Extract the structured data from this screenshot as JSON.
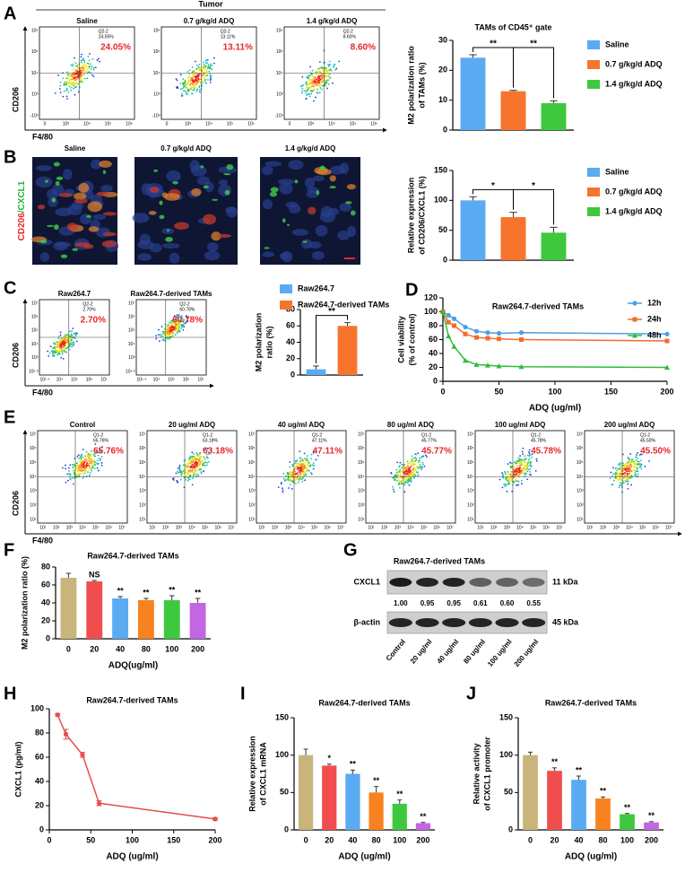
{
  "panel_letters": [
    "A",
    "B",
    "C",
    "D",
    "E",
    "F",
    "G",
    "H",
    "I",
    "J"
  ],
  "flow_axis_labels": {
    "y": "CD206",
    "x": "F4/80"
  },
  "flow_groups": [
    {
      "header": "Tumor",
      "yticks": [
        "10⁶",
        "10⁵",
        "10⁴",
        "10³",
        "-10³"
      ],
      "xticks": [
        "0",
        "10³",
        "10⁴",
        "10⁵",
        "10⁶"
      ],
      "plots": [
        {
          "title": "Saline",
          "gate": "Q2-2",
          "percent": 24.05,
          "percent_label": "24.05%"
        },
        {
          "title": "0.7 g/kg/d ADQ",
          "gate": "Q2-2",
          "percent": 13.11,
          "percent_label": "13.11%"
        },
        {
          "title": "1.4 g/kg/d ADQ",
          "gate": "Q2-2",
          "percent": 8.6,
          "percent_label": "8.60%"
        }
      ]
    },
    {
      "yticks": [
        "10⁷",
        "10⁶",
        "10⁵",
        "10⁴",
        "10³",
        "10¹·²"
      ],
      "xticks": [
        "10¹·⁴",
        "10⁴",
        "10⁵",
        "10⁶",
        "10⁷"
      ],
      "plots": [
        {
          "title": "Raw264.7",
          "gate": "Q2-2",
          "percent": 2.7,
          "percent_label": "2.70%"
        },
        {
          "title": "Raw264.7-derived TAMs",
          "gate": "Q2-2",
          "percent": 60.78,
          "percent_label": "60.78%"
        }
      ]
    },
    {
      "yticks": [
        "10⁷",
        "10⁶",
        "10⁵",
        "10⁴",
        "10³",
        "10²",
        "10¹"
      ],
      "xticks": [
        "10¹",
        "10²",
        "10³",
        "10⁴",
        "10⁵",
        "10⁶",
        "10⁷"
      ],
      "plots": [
        {
          "title": "Control",
          "gate": "Q1-2",
          "percent": 65.76,
          "percent_label": "65.76%"
        },
        {
          "title": "20 ug/ml ADQ",
          "gate": "Q1-2",
          "percent": 63.18,
          "percent_label": "63.18%"
        },
        {
          "title": "40 ug/ml ADQ",
          "gate": "Q1-2",
          "percent": 47.11,
          "percent_label": "47.11%"
        },
        {
          "title": "80 ug/ml ADQ",
          "gate": "Q1-2",
          "percent": 45.77,
          "percent_label": "45.77%"
        },
        {
          "title": "100 ug/ml ADQ",
          "gate": "Q1-2",
          "percent": 45.78,
          "percent_label": "45.78%"
        },
        {
          "title": "200 ug/ml ADQ",
          "gate": "Q1-2",
          "percent": 45.5,
          "percent_label": "45.50%"
        }
      ]
    }
  ],
  "micrographs": {
    "stain_labels": [
      "CD206",
      "/CXCL1"
    ],
    "titles": [
      "Saline",
      "0.7 g/kg/d ADQ",
      "1.4 g/kg/d ADQ"
    ]
  },
  "western_blot": {
    "title": "Raw264.7-derived TAMs",
    "bands": [
      {
        "name": "CXCL1",
        "size": "11 kDa"
      },
      {
        "name": "β-actin",
        "size": "45 kDa"
      }
    ],
    "lanes": [
      "Control",
      "20 ug/ml",
      "40 ug/ml",
      "80 ug/ml",
      "100 ug/ml",
      "200 ug/ml"
    ],
    "quantification": [
      1,
      0.95,
      0.95,
      0.61,
      0.6,
      0.55
    ],
    "quantification_labels": [
      "1.00",
      "0.95",
      "0.95",
      "0.61",
      "0.60",
      "0.55"
    ]
  },
  "chart_data": [
    {
      "type": "bar",
      "title": "TAMs of CD45⁺ gate",
      "ylabel": [
        "M2 polarization ratio",
        "of TAMs (%)"
      ],
      "categories": [
        "Saline",
        "0.7 g/kg/d ADQ",
        "1.4 g/kg/d ADQ"
      ],
      "values": [
        24.2,
        13,
        9
      ],
      "errors": [
        1,
        0.3,
        0.8
      ],
      "colors": [
        "#5aabf2",
        "#f7742d",
        "#3ec83e"
      ],
      "ylim": [
        0,
        30
      ],
      "yticks": [
        0,
        10,
        20,
        30
      ],
      "legend": true,
      "significance": [
        "**",
        "**"
      ]
    },
    {
      "type": "bar",
      "ylabel": [
        "Relative expression",
        "of CD206/CXCL1 (%)"
      ],
      "categories": [
        "Saline",
        "0.7 g/kg/d ADQ",
        "1.4 g/kg/d ADQ"
      ],
      "values": [
        100,
        72,
        46
      ],
      "errors": [
        6,
        8,
        9
      ],
      "colors": [
        "#5aabf2",
        "#f7742d",
        "#3ec83e"
      ],
      "ylim": [
        0,
        150
      ],
      "yticks": [
        0,
        50,
        100,
        150
      ],
      "legend": true,
      "significance": [
        "*",
        "*"
      ]
    },
    {
      "type": "bar",
      "ylabel": [
        "M2 polarization",
        "ratio (%)"
      ],
      "categories": [
        "Raw264.7",
        "Raw264.7-derived TAMs"
      ],
      "values": [
        7,
        60
      ],
      "errors": [
        4,
        4
      ],
      "colors": [
        "#5aabf2",
        "#f7742d"
      ],
      "ylim": [
        0,
        80
      ],
      "yticks": [
        0,
        20,
        40,
        60,
        80
      ],
      "legend": true,
      "significance": [
        "**"
      ]
    },
    {
      "type": "line",
      "title": "Raw264.7-derived TAMs",
      "xlabel": "ADQ (ug/ml)",
      "ylabel": [
        "Cell viability",
        "(% of control)"
      ],
      "x": [
        0,
        5,
        10,
        20,
        30,
        40,
        50,
        70,
        200
      ],
      "series": [
        {
          "name": "12h",
          "color": "#4a9fe8",
          "values": [
            100,
            95,
            90,
            78,
            72,
            70,
            69,
            70,
            68
          ]
        },
        {
          "name": "24h",
          "color": "#f26b2a",
          "values": [
            100,
            85,
            80,
            68,
            63,
            62,
            61,
            60,
            58
          ]
        },
        {
          "name": "48h",
          "color": "#2dbd3a",
          "values": [
            100,
            65,
            50,
            30,
            24,
            23,
            22,
            21,
            20
          ]
        }
      ],
      "xlim": [
        0,
        200
      ],
      "xticks": [
        0,
        50,
        100,
        150,
        200
      ],
      "ylim": [
        0,
        120
      ],
      "yticks": [
        0,
        20,
        40,
        60,
        80,
        100,
        120
      ],
      "legend": true
    },
    {
      "type": "bar",
      "title": "Raw264.7-derived TAMs",
      "xlabel": "ADQ(ug/ml)",
      "ylabel": [
        "M2 polarization ratio (%)"
      ],
      "categories": [
        "0",
        "20",
        "40",
        "80",
        "100",
        "200"
      ],
      "values": [
        68,
        64,
        45,
        43,
        43,
        40
      ],
      "errors": [
        5,
        1,
        2,
        2,
        5,
        5
      ],
      "colors": [
        "#c9b47c",
        "#f04e4e",
        "#5aabf2",
        "#f7821f",
        "#3ec83e",
        "#c366e3"
      ],
      "ylim": [
        0,
        80
      ],
      "yticks": [
        0,
        20,
        40,
        60,
        80
      ],
      "value_annotations": [
        null,
        "NS",
        "**",
        "**",
        "**",
        "**"
      ]
    },
    {
      "type": "scatter",
      "title": "Raw264.7-derived TAMs",
      "xlabel": "ADQ (ug/ml)",
      "ylabel": [
        "CXCL1 (pg/ml)"
      ],
      "x": [
        10,
        20,
        40,
        60,
        200
      ],
      "values": [
        95,
        79,
        62,
        22,
        9
      ],
      "errors": [
        1,
        4,
        2,
        2,
        1
      ],
      "color": "#e84c4c",
      "xlim": [
        0,
        200
      ],
      "xticks": [
        0,
        50,
        100,
        150,
        200
      ],
      "ylim": [
        0,
        100
      ],
      "yticks": [
        0,
        20,
        40,
        60,
        80,
        100
      ]
    },
    {
      "type": "bar",
      "title": "Raw264.7-derived TAMs",
      "xlabel": "ADQ (ug/ml)",
      "ylabel": [
        "Relative expression",
        "of CXCL1 mRNA"
      ],
      "categories": [
        "0",
        "20",
        "40",
        "80",
        "100",
        "200"
      ],
      "values": [
        100,
        86,
        75,
        50,
        35,
        9
      ],
      "errors": [
        8,
        2,
        5,
        8,
        5,
        1
      ],
      "colors": [
        "#c9b47c",
        "#f04e4e",
        "#5aabf2",
        "#f7821f",
        "#3ec83e",
        "#c366e3"
      ],
      "ylim": [
        0,
        150
      ],
      "yticks": [
        0,
        50,
        100,
        150
      ],
      "value_annotations": [
        null,
        "*",
        "**",
        "**",
        "**",
        "**"
      ]
    },
    {
      "type": "bar",
      "title": "Raw264.7-derived TAMs",
      "xlabel": "ADQ (ug/ml)",
      "ylabel": [
        "Relative activity",
        "of CXCL1 promoter"
      ],
      "categories": [
        "0",
        "20",
        "40",
        "80",
        "100",
        "200"
      ],
      "values": [
        100,
        79,
        67,
        42,
        21,
        10
      ],
      "errors": [
        4,
        4,
        5,
        2,
        1,
        1
      ],
      "colors": [
        "#c9b47c",
        "#f04e4e",
        "#5aabf2",
        "#f7821f",
        "#3ec83e",
        "#c366e3"
      ],
      "ylim": [
        0,
        150
      ],
      "yticks": [
        0,
        50,
        100,
        150
      ],
      "value_annotations": [
        null,
        "**",
        "**",
        "**",
        "**",
        "**"
      ]
    }
  ]
}
